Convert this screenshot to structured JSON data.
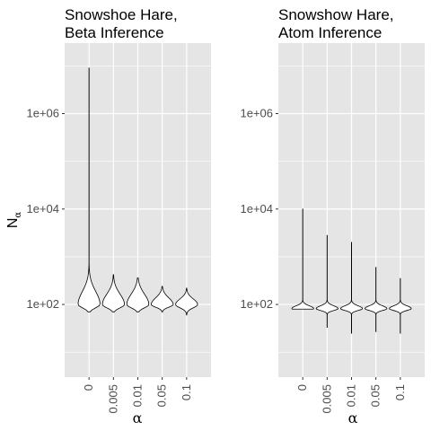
{
  "chart_data": [
    {
      "type": "violin",
      "title_lines": [
        "Snowshoe Hare,",
        "Beta Inference"
      ],
      "xlabel": "α",
      "ylabel": "N",
      "ylabel_subscript": "α",
      "y_scale": "log10",
      "ylim": [
        3,
        30000000
      ],
      "y_ticks": [
        {
          "value": 100,
          "label": "1e+02"
        },
        {
          "value": 10000,
          "label": "1e+04"
        },
        {
          "value": 1000000,
          "label": "1e+06"
        }
      ],
      "categories": [
        "0",
        "0.005",
        "0.01",
        "0.05",
        "0.1"
      ],
      "violins": [
        {
          "category": "0",
          "min": 70,
          "max": 9000000,
          "body_low": 70,
          "body_high": 400,
          "peak": 100
        },
        {
          "category": "0.005",
          "min": 70,
          "max": 420,
          "body_low": 70,
          "body_high": 300,
          "peak": 100
        },
        {
          "category": "0.01",
          "min": 70,
          "max": 360,
          "body_low": 70,
          "body_high": 300,
          "peak": 100
        },
        {
          "category": "0.05",
          "min": 70,
          "max": 240,
          "body_low": 75,
          "body_high": 200,
          "peak": 100
        },
        {
          "category": "0.1",
          "min": 60,
          "max": 220,
          "body_low": 70,
          "body_high": 180,
          "peak": 100
        }
      ],
      "grid": true,
      "panel_background": "#e5e5e5",
      "grid_color": "#ffffff",
      "violin_fill": "#ffffff",
      "violin_stroke": "#000000"
    },
    {
      "type": "violin",
      "title_lines": [
        "Snowshow Hare,",
        "Atom Inference"
      ],
      "xlabel": "α",
      "y_scale": "log10",
      "ylim": [
        3,
        30000000
      ],
      "y_ticks": [
        {
          "value": 100,
          "label": "1e+02"
        },
        {
          "value": 10000,
          "label": "1e+04"
        },
        {
          "value": 1000000,
          "label": "1e+06"
        }
      ],
      "categories": [
        "0",
        "0.005",
        "0.01",
        "0.05",
        "0.1"
      ],
      "violins": [
        {
          "category": "0",
          "min": 80,
          "max": 10000,
          "body_low": 70,
          "body_high": 110,
          "peak": 82
        },
        {
          "category": "0.005",
          "min": 33,
          "max": 2800,
          "body_low": 68,
          "body_high": 110,
          "peak": 82
        },
        {
          "category": "0.01",
          "min": 25,
          "max": 2000,
          "body_low": 68,
          "body_high": 110,
          "peak": 82
        },
        {
          "category": "0.05",
          "min": 27,
          "max": 600,
          "body_low": 68,
          "body_high": 110,
          "peak": 82
        },
        {
          "category": "0.1",
          "min": 25,
          "max": 350,
          "body_low": 68,
          "body_high": 110,
          "peak": 82
        }
      ],
      "grid": true,
      "panel_background": "#e5e5e5",
      "grid_color": "#ffffff",
      "violin_fill": "#ffffff",
      "violin_stroke": "#000000"
    }
  ]
}
